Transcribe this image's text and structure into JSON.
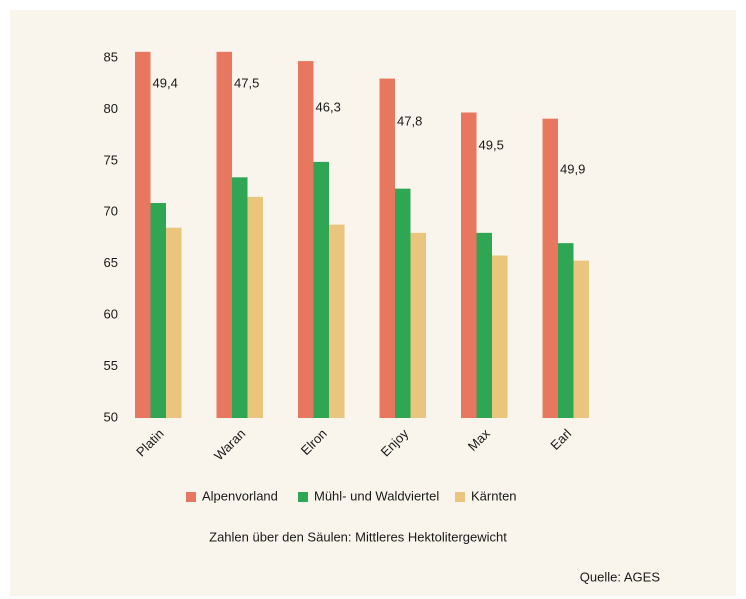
{
  "chart_data": {
    "type": "bar",
    "categories": [
      "Platin",
      "Waran",
      "Elron",
      "Enjoy",
      "Max",
      "Earl"
    ],
    "series": [
      {
        "name": "Alpenvorland",
        "color": "#e8775f",
        "values": [
          85.6,
          85.6,
          84.7,
          83.0,
          79.7,
          79.1
        ]
      },
      {
        "name": "Mühl- und Waldviertel",
        "color": "#2fa653",
        "values": [
          70.9,
          73.4,
          74.9,
          72.3,
          68.0,
          67.0
        ]
      },
      {
        "name": "Kärnten",
        "color": "#e9c57e",
        "values": [
          68.5,
          71.5,
          68.8,
          68.0,
          65.8,
          65.3
        ]
      }
    ],
    "annotations": [
      "49,4",
      "47,5",
      "46,3",
      "47,8",
      "49,5",
      "49,9"
    ],
    "ylim": [
      50,
      85
    ],
    "yticks": [
      50,
      55,
      60,
      65,
      70,
      75,
      80,
      85
    ],
    "grid": false,
    "note": "Zahlen über den Säulen: Mittleres Hektolitergewicht",
    "source": "Quelle: AGES"
  }
}
